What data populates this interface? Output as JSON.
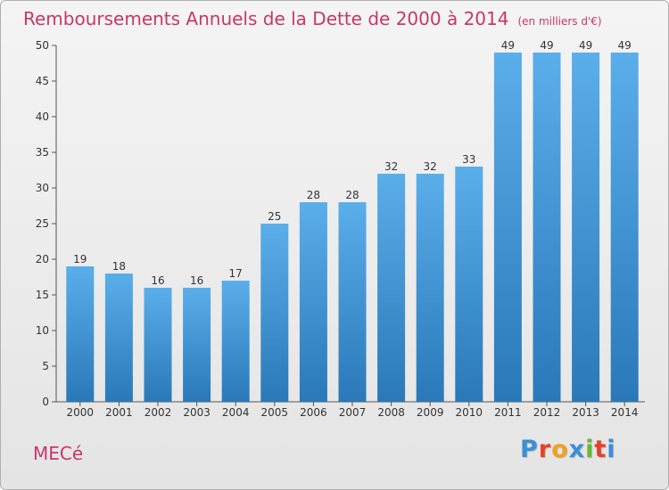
{
  "chart_data": {
    "type": "bar",
    "title": "Remboursements Annuels de la Dette de 2000 à 2014",
    "unit_note": "(en milliers d'€)",
    "categories": [
      "2000",
      "2001",
      "2002",
      "2003",
      "2004",
      "2005",
      "2006",
      "2007",
      "2008",
      "2009",
      "2010",
      "2011",
      "2012",
      "2013",
      "2014"
    ],
    "values": [
      19,
      18,
      16,
      16,
      17,
      25,
      28,
      28,
      32,
      32,
      33,
      49,
      49,
      49,
      49
    ],
    "ylim": [
      0,
      50
    ],
    "yticks": [
      0,
      5,
      10,
      15,
      20,
      25,
      30,
      35,
      40,
      45,
      50
    ],
    "grid": false,
    "bar_color_top": "#5aaeea",
    "bar_color_bottom": "#2a78b8"
  },
  "footer": {
    "commune": "MECé",
    "brand": "Proxiti",
    "brand_colors": [
      "#3a8fd8",
      "#e8402a",
      "#f0a020",
      "#3a8fd8",
      "#68b82e",
      "#e8402a",
      "#3a8fd8"
    ]
  }
}
